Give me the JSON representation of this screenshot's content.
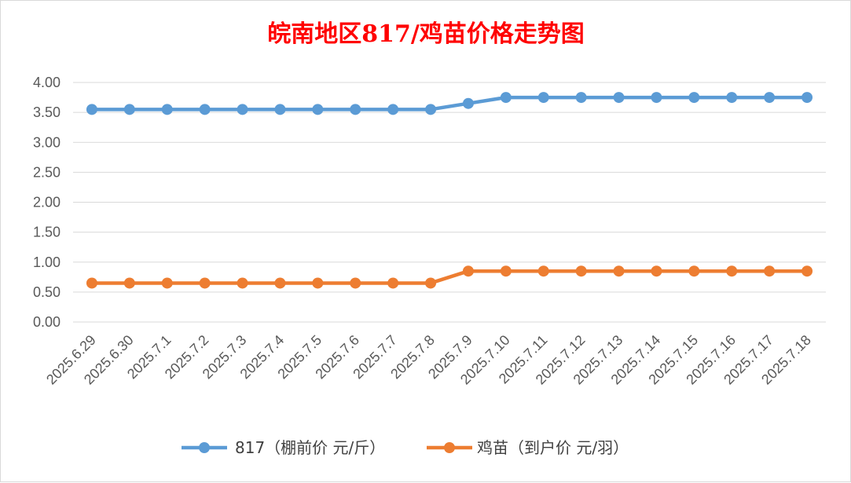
{
  "chart_data": {
    "type": "line",
    "title": "皖南地区817/鸡苗价格走势图",
    "xlabel": "",
    "ylabel": "",
    "ylim": [
      0,
      4
    ],
    "yticks": [
      "0.00",
      "0.50",
      "1.00",
      "1.50",
      "2.00",
      "2.50",
      "3.00",
      "3.50",
      "4.00"
    ],
    "grid": true,
    "legend_position": "bottom",
    "categories": [
      "2025.6.29",
      "2025.6.30",
      "2025.7.1",
      "2025.7.2",
      "2025.7.3",
      "2025.7.4",
      "2025.7.5",
      "2025.7.6",
      "2025.7.7",
      "2025.7.8",
      "2025.7.9",
      "2025.7.10",
      "2025.7.11",
      "2025.7.12",
      "2025.7.13",
      "2025.7.14",
      "2025.7.15",
      "2025.7.16",
      "2025.7.17",
      "2025.7.18"
    ],
    "series": [
      {
        "name": "817（棚前价 元/斤）",
        "color": "#5b9bd5",
        "values": [
          3.55,
          3.55,
          3.55,
          3.55,
          3.55,
          3.55,
          3.55,
          3.55,
          3.55,
          3.55,
          3.65,
          3.75,
          3.75,
          3.75,
          3.75,
          3.75,
          3.75,
          3.75,
          3.75,
          3.75
        ]
      },
      {
        "name": "鸡苗（到户价 元/羽）",
        "color": "#ed7d31",
        "values": [
          0.65,
          0.65,
          0.65,
          0.65,
          0.65,
          0.65,
          0.65,
          0.65,
          0.65,
          0.65,
          0.85,
          0.85,
          0.85,
          0.85,
          0.85,
          0.85,
          0.85,
          0.85,
          0.85,
          0.85
        ]
      }
    ]
  }
}
